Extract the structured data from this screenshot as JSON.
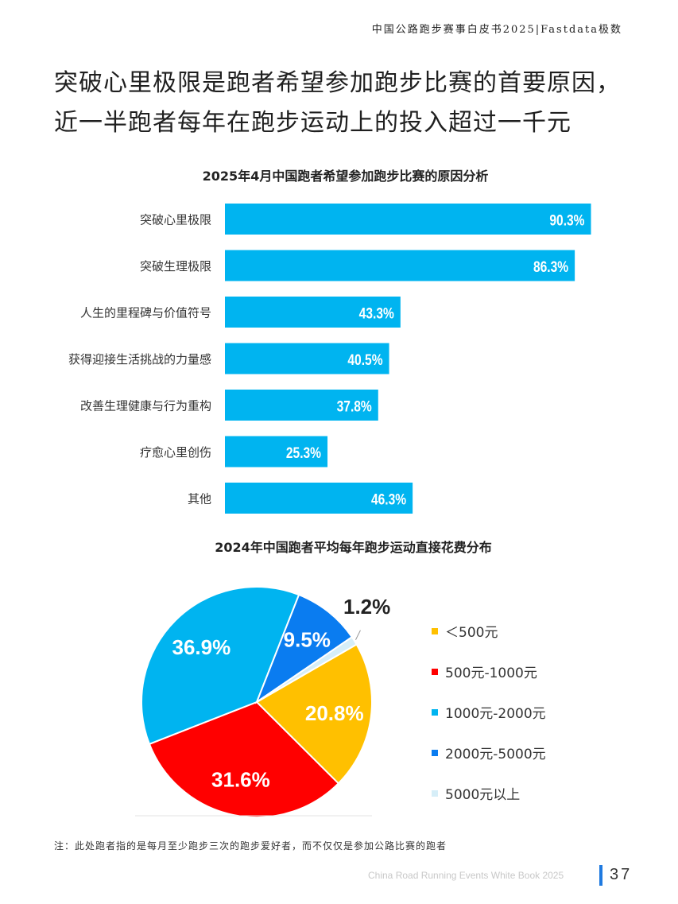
{
  "header": {
    "title": "中国公路跑步赛事白皮书2025|Fastdata极数"
  },
  "headline": {
    "line1": "突破心里极限是跑者希望参加跑步比赛的首要原因，",
    "line2": "近一半跑者每年在跑步运动上的投入超过一千元"
  },
  "chart_data": [
    {
      "type": "bar",
      "orientation": "horizontal",
      "title": "2025年4月中国跑者希望参加跑步比赛的原因分析",
      "categories": [
        "突破心里极限",
        "突破生理极限",
        "人生的里程碑与价值符号",
        "获得迎接生活挑战的力量感",
        "改善生理健康与行为重构",
        "疗愈心里创伤",
        "其他"
      ],
      "values": [
        90.3,
        86.3,
        43.3,
        40.5,
        37.8,
        25.3,
        46.3
      ],
      "value_labels": [
        "90.3%",
        "86.3%",
        "43.3%",
        "40.5%",
        "37.8%",
        "25.3%",
        "46.3%"
      ],
      "unit": "%",
      "xlim": [
        0,
        100
      ],
      "color": "#00b4f0",
      "grid": false
    },
    {
      "type": "pie",
      "title": "2024年中国跑者平均每年跑步运动直接花费分布",
      "categories": [
        "＜500元",
        "500元-1000元",
        "1000元-2000元",
        "2000元-5000元",
        "5000元以上"
      ],
      "values": [
        20.8,
        31.6,
        36.9,
        9.5,
        1.2
      ],
      "value_labels": [
        "20.8%",
        "31.6%",
        "36.9%",
        "9.5%",
        "1.2%"
      ],
      "colors": [
        "#ffc000",
        "#ff0000",
        "#00b4f0",
        "#0a7cf0",
        "#d6eef8"
      ],
      "legend_position": "right"
    }
  ],
  "note": "注：此处跑者指的是每月至少跑步三次的跑步爱好者，而不仅仅是参加公路比赛的跑者",
  "footer": {
    "text": "China Road Running Events White Book 2025",
    "page": "37"
  }
}
